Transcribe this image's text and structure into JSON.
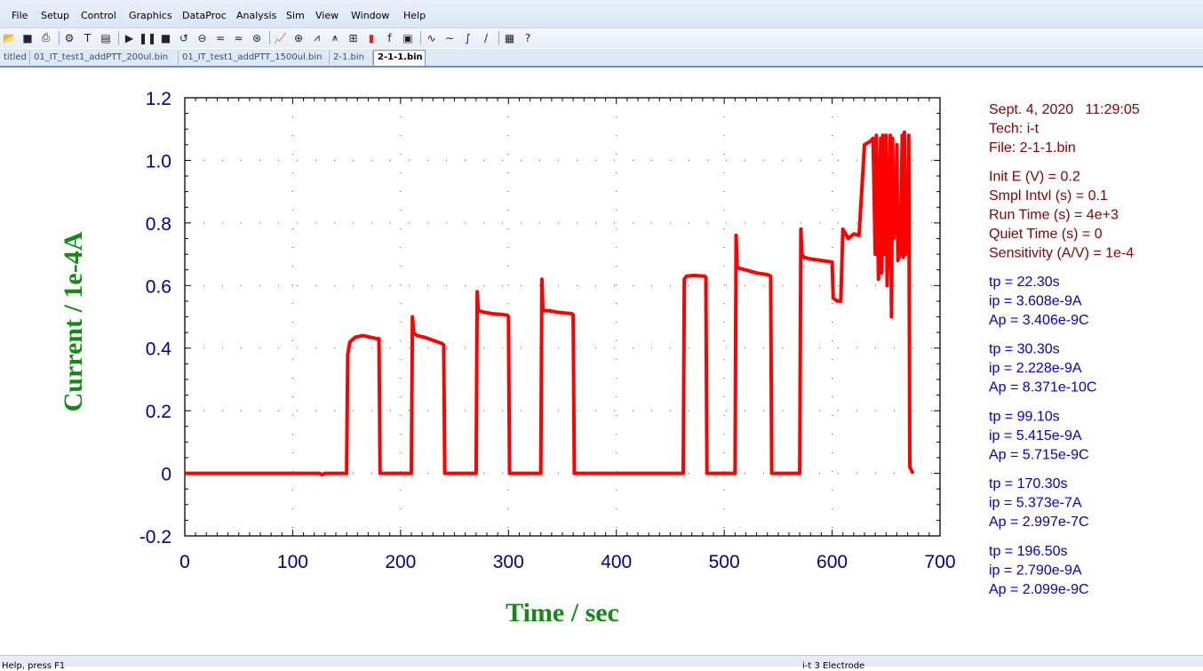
{
  "menu": [
    "File",
    "Setup",
    "Control",
    "Graphics",
    "DataProc",
    "Analysis",
    "Sim",
    "View",
    "Window",
    "Help"
  ],
  "toolbar_icons": [
    "open-icon",
    "save-icon",
    "print-icon",
    "setup-icon",
    "text-icon",
    "toolbar-icon",
    "run-icon",
    "pause-icon",
    "stop-icon",
    "reverse-icon",
    "zero-icon",
    "smooth-icon",
    "filter-icon",
    "options-icon",
    "graph-icon",
    "zoom-icon",
    "peak-icon",
    "manual-icon",
    "overlay-icon",
    "color-icon",
    "font-icon",
    "clipboard-icon",
    "noise-icon",
    "wave-icon",
    "integrate-icon",
    "tool-icon",
    "table-icon",
    "help-icon"
  ],
  "tabs": [
    {
      "label": "titled",
      "active": false
    },
    {
      "label": "01_IT_test1_addPTT_200ul.bin",
      "active": false
    },
    {
      "label": "01_IT_test1_addPTT_1500ul.bin",
      "active": false
    },
    {
      "label": "2-1.bin",
      "active": false
    },
    {
      "label": "2-1-1.bin",
      "active": true
    }
  ],
  "chart_data": {
    "type": "line",
    "xlabel": "Time / sec",
    "ylabel": "Current / 1e-4A",
    "xlim": [
      0,
      700
    ],
    "ylim": [
      -0.2,
      1.2
    ],
    "x_ticks": [
      0,
      100,
      200,
      300,
      400,
      500,
      600,
      700
    ],
    "y_ticks": [
      -0.2,
      0,
      0.2,
      0.4,
      0.6,
      0.8,
      1.0,
      1.2
    ],
    "x_tick_labels": [
      "0",
      "100",
      "200",
      "300",
      "400",
      "500",
      "600",
      "700"
    ],
    "y_tick_labels": [
      "-0.2",
      "0",
      "0.2",
      "0.4",
      "0.6",
      "0.8",
      "1.0",
      "1.2"
    ],
    "grid": "dotted",
    "color": "#ff0000",
    "series": [
      {
        "x": [
          0,
          125,
          127,
          130,
          150,
          151,
          153,
          158,
          165,
          172,
          178,
          180,
          181,
          210,
          211,
          212,
          215,
          222,
          230,
          238,
          240,
          241,
          270,
          271,
          272,
          277,
          285,
          293,
          299,
          300,
          301,
          330,
          331,
          332,
          337,
          345,
          353,
          359,
          360,
          361,
          462,
          463,
          465,
          472,
          482,
          483,
          484,
          510,
          511,
          512,
          514,
          520,
          530,
          540,
          543,
          544,
          570,
          571,
          572,
          574,
          580,
          590,
          600,
          601,
          605,
          608,
          610,
          615,
          620,
          625,
          630,
          635,
          638,
          640,
          641,
          643,
          645,
          646,
          647,
          648,
          650,
          651,
          652,
          654,
          655,
          656,
          657,
          659,
          660,
          661,
          663,
          665,
          666,
          667,
          668,
          670,
          671,
          672,
          675
        ],
        "y": [
          0,
          0,
          -0.005,
          0,
          0,
          0.38,
          0.42,
          0.435,
          0.44,
          0.435,
          0.43,
          0.43,
          0,
          0,
          0.5,
          0.45,
          0.44,
          0.435,
          0.425,
          0.415,
          0.41,
          0,
          0,
          0.58,
          0.52,
          0.515,
          0.51,
          0.508,
          0.505,
          0.5,
          0,
          0,
          0.62,
          0.52,
          0.52,
          0.515,
          0.512,
          0.51,
          0.505,
          0,
          0,
          0.62,
          0.63,
          0.632,
          0.63,
          0.625,
          0,
          0,
          0.76,
          0.66,
          0.655,
          0.65,
          0.64,
          0.635,
          0.63,
          0,
          0,
          0.78,
          0.7,
          0.69,
          0.685,
          0.68,
          0.675,
          0.56,
          0.55,
          0.55,
          0.78,
          0.75,
          0.765,
          0.76,
          1.05,
          1.06,
          1.07,
          0.7,
          1.08,
          0.62,
          1.07,
          0.64,
          1.08,
          0.7,
          1.08,
          0.6,
          0.75,
          1.08,
          0.5,
          1.07,
          0.75,
          0.8,
          1.05,
          0.68,
          0.7,
          1.08,
          0.69,
          1.09,
          0.7,
          0.75,
          1.08,
          0.02,
          0
        ]
      }
    ]
  },
  "info": {
    "header": [
      {
        "text": "Sept. 4, 2020   11:29:05"
      },
      {
        "text": "Tech: i-t"
      },
      {
        "text": "File: 2-1-1.bin"
      }
    ],
    "params": [
      {
        "text": "Init E (V) = 0.2"
      },
      {
        "text": "Smpl Intvl (s) = 0.1"
      },
      {
        "text": "Run Time (s) = 4e+3"
      },
      {
        "text": "Quiet Time (s) = 0"
      },
      {
        "text": "Sensitivity (A/V) = 1e-4"
      }
    ],
    "peaks": [
      {
        "tp": "tp = 22.30s",
        "ip": "ip = 3.608e-9A",
        "ap": "Ap = 3.406e-9C"
      },
      {
        "tp": "tp = 30.30s",
        "ip": "ip = 2.228e-9A",
        "ap": "Ap = 8.371e-10C"
      },
      {
        "tp": "tp = 99.10s",
        "ip": "ip = 5.415e-9A",
        "ap": "Ap = 5.715e-9C"
      },
      {
        "tp": "tp = 170.30s",
        "ip": "ip = 5.373e-7A",
        "ap": "Ap = 2.997e-7C"
      },
      {
        "tp": "tp = 196.50s",
        "ip": "ip = 2.790e-9A",
        "ap": "Ap = 2.099e-9C"
      }
    ],
    "header_color": "#8b0000",
    "peak_color": "#0000cd"
  },
  "status": {
    "left": "Help, press F1",
    "right": "i-t    3 Electrode"
  }
}
